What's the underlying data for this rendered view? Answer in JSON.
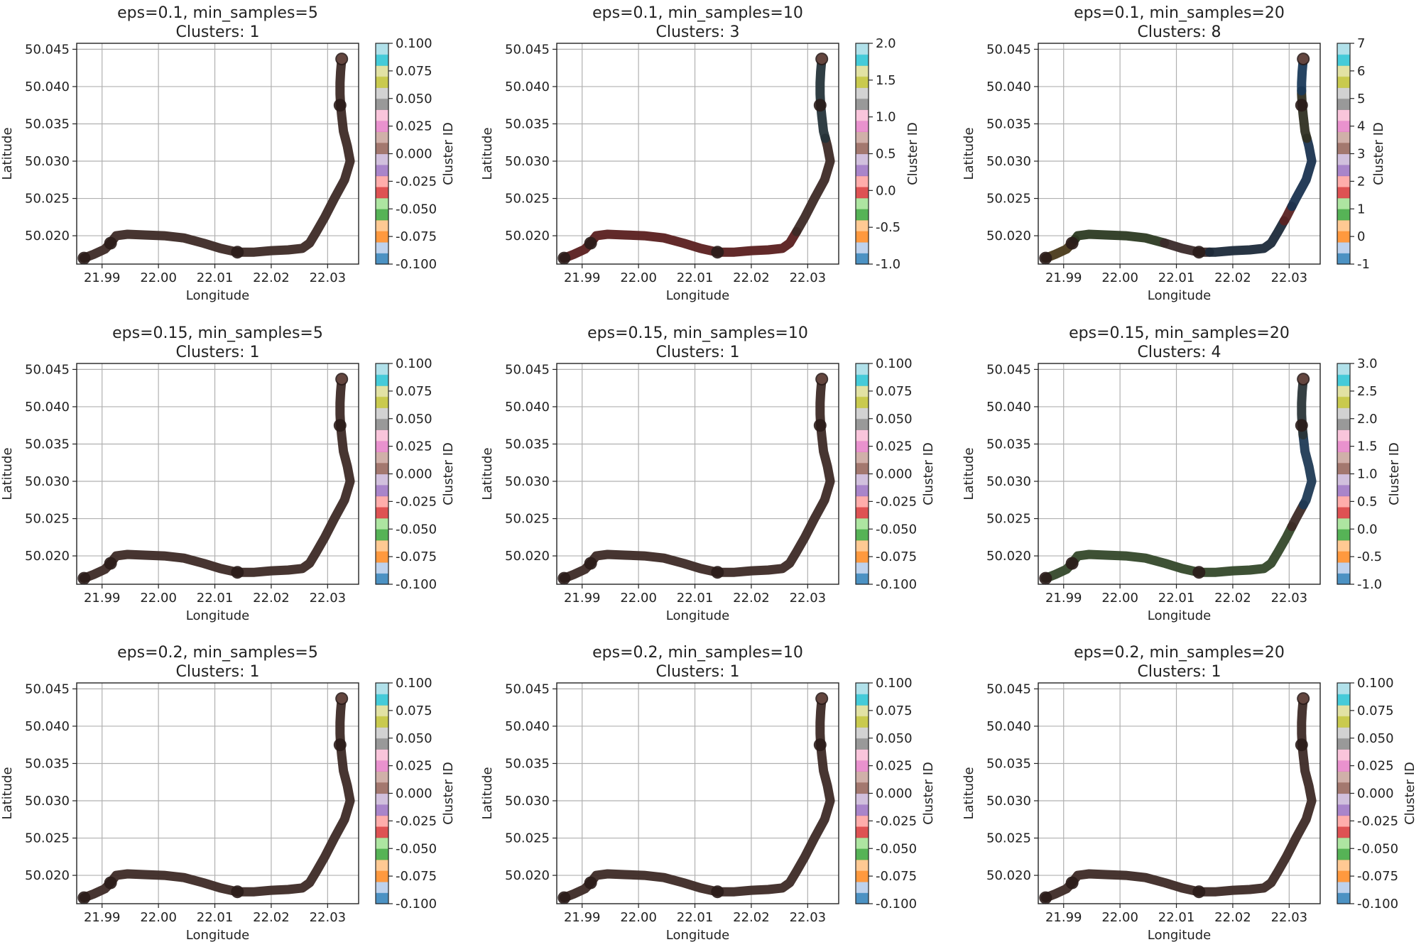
{
  "figure": {
    "axis_labels": {
      "x": "Longitude",
      "y": "Latitude",
      "colorbar": "Cluster ID"
    },
    "tab20_colors": [
      "#1f77b4",
      "#aec7e8",
      "#ff7f0e",
      "#ffbb78",
      "#2ca02c",
      "#98df8a",
      "#d62728",
      "#ff9896",
      "#9467bd",
      "#c5b0d5",
      "#8c564b",
      "#c49c94",
      "#e377c2",
      "#f7b6d2",
      "#7f7f7f",
      "#c7c7c7",
      "#bcbd22",
      "#dbdb8d",
      "#17becf",
      "#9edae5"
    ]
  },
  "chart_data": [
    {
      "type": "scatter",
      "title": "eps=0.1, min_samples=5",
      "subtitle": "Clusters: 1",
      "xlabel": "Longitude",
      "ylabel": "Latitude",
      "xlim": [
        21.9855,
        22.0355
      ],
      "ylim": [
        50.0162,
        50.0458
      ],
      "xticks": [
        "21.99",
        "22.00",
        "22.01",
        "22.02",
        "22.03"
      ],
      "yticks": [
        "50.020",
        "50.025",
        "50.030",
        "50.035",
        "50.040",
        "50.045"
      ],
      "grid": true,
      "colorbar": {
        "label": "Cluster ID",
        "range": [
          -0.1,
          0.1
        ],
        "ticks": [
          "-0.100",
          "-0.075",
          "-0.050",
          "-0.025",
          "0.000",
          "0.025",
          "0.050",
          "0.075",
          "0.100"
        ]
      },
      "segments": [
        {
          "color": "#3d2a26",
          "from": 0,
          "to": 1
        }
      ]
    },
    {
      "type": "scatter",
      "title": "eps=0.1, min_samples=10",
      "subtitle": "Clusters: 3",
      "xlabel": "Longitude",
      "ylabel": "Latitude",
      "xlim": [
        21.9855,
        22.0355
      ],
      "ylim": [
        50.0162,
        50.0458
      ],
      "xticks": [
        "21.99",
        "22.00",
        "22.01",
        "22.02",
        "22.03"
      ],
      "yticks": [
        "50.020",
        "50.025",
        "50.030",
        "50.035",
        "50.040",
        "50.045"
      ],
      "grid": true,
      "colorbar": {
        "label": "Cluster ID",
        "range": [
          -1,
          2
        ],
        "ticks": [
          "-1.0",
          "-0.5",
          "0.0",
          "0.5",
          "1.0",
          "1.5",
          "2.0"
        ]
      },
      "segments": [
        {
          "color": "#5a1f1f",
          "from": 0,
          "to": 0.55
        },
        {
          "color": "#3d2a26",
          "from": 0.55,
          "to": 0.8
        },
        {
          "color": "#25343a",
          "from": 0.8,
          "to": 1
        }
      ]
    },
    {
      "type": "scatter",
      "title": "eps=0.1, min_samples=20",
      "subtitle": "Clusters: 8",
      "xlabel": "Longitude",
      "ylabel": "Latitude",
      "xlim": [
        21.9855,
        22.0355
      ],
      "ylim": [
        50.0162,
        50.0458
      ],
      "xticks": [
        "21.99",
        "22.00",
        "22.01",
        "22.02",
        "22.03"
      ],
      "yticks": [
        "50.020",
        "50.025",
        "50.030",
        "50.035",
        "50.040",
        "50.045"
      ],
      "grid": true,
      "colorbar": {
        "label": "Cluster ID",
        "range": [
          -1,
          7
        ],
        "ticks": [
          "-1",
          "0",
          "1",
          "2",
          "3",
          "4",
          "5",
          "6",
          "7"
        ]
      },
      "segments": [
        {
          "color": "#4a3a1a",
          "from": 0,
          "to": 0.08
        },
        {
          "color": "#2c3a22",
          "from": 0.08,
          "to": 0.28
        },
        {
          "color": "#3a2a2a",
          "from": 0.28,
          "to": 0.38
        },
        {
          "color": "#1c2a3a",
          "from": 0.38,
          "to": 0.58
        },
        {
          "color": "#5a2222",
          "from": 0.58,
          "to": 0.62
        },
        {
          "color": "#1a3350",
          "from": 0.62,
          "to": 0.8
        },
        {
          "color": "#2f2f22",
          "from": 0.8,
          "to": 0.92
        },
        {
          "color": "#1a3a5a",
          "from": 0.92,
          "to": 1
        }
      ]
    },
    {
      "type": "scatter",
      "title": "eps=0.15, min_samples=5",
      "subtitle": "Clusters: 1",
      "xlabel": "Longitude",
      "ylabel": "Latitude",
      "xlim": [
        21.9855,
        22.0355
      ],
      "ylim": [
        50.0162,
        50.0458
      ],
      "xticks": [
        "21.99",
        "22.00",
        "22.01",
        "22.02",
        "22.03"
      ],
      "yticks": [
        "50.020",
        "50.025",
        "50.030",
        "50.035",
        "50.040",
        "50.045"
      ],
      "grid": true,
      "colorbar": {
        "label": "Cluster ID",
        "range": [
          -0.1,
          0.1
        ],
        "ticks": [
          "-0.100",
          "-0.075",
          "-0.050",
          "-0.025",
          "0.000",
          "0.025",
          "0.050",
          "0.075",
          "0.100"
        ]
      },
      "segments": [
        {
          "color": "#3d2a26",
          "from": 0,
          "to": 1
        }
      ]
    },
    {
      "type": "scatter",
      "title": "eps=0.15, min_samples=10",
      "subtitle": "Clusters: 1",
      "xlabel": "Longitude",
      "ylabel": "Latitude",
      "xlim": [
        21.9855,
        22.0355
      ],
      "ylim": [
        50.0162,
        50.0458
      ],
      "xticks": [
        "21.99",
        "22.00",
        "22.01",
        "22.02",
        "22.03"
      ],
      "yticks": [
        "50.020",
        "50.025",
        "50.030",
        "50.035",
        "50.040",
        "50.045"
      ],
      "grid": true,
      "colorbar": {
        "label": "Cluster ID",
        "range": [
          -0.1,
          0.1
        ],
        "ticks": [
          "-0.100",
          "-0.075",
          "-0.050",
          "-0.025",
          "0.000",
          "0.025",
          "0.050",
          "0.075",
          "0.100"
        ]
      },
      "segments": [
        {
          "color": "#3d2a26",
          "from": 0,
          "to": 1
        }
      ]
    },
    {
      "type": "scatter",
      "title": "eps=0.15, min_samples=20",
      "subtitle": "Clusters: 4",
      "xlabel": "Longitude",
      "ylabel": "Latitude",
      "xlim": [
        21.9855,
        22.0355
      ],
      "ylim": [
        50.0162,
        50.0458
      ],
      "xticks": [
        "21.99",
        "22.00",
        "22.01",
        "22.02",
        "22.03"
      ],
      "yticks": [
        "50.020",
        "50.025",
        "50.030",
        "50.035",
        "50.040",
        "50.045"
      ],
      "grid": true,
      "colorbar": {
        "label": "Cluster ID",
        "range": [
          -1,
          3
        ],
        "ticks": [
          "-1.0",
          "-0.5",
          "0.0",
          "0.5",
          "1.0",
          "1.5",
          "2.0",
          "2.5",
          "3.0"
        ]
      },
      "segments": [
        {
          "color": "#34482a",
          "from": 0,
          "to": 0.62
        },
        {
          "color": "#3d2a26",
          "from": 0.62,
          "to": 0.68
        },
        {
          "color": "#1f3a55",
          "from": 0.68,
          "to": 0.86
        },
        {
          "color": "#2a3538",
          "from": 0.86,
          "to": 1
        }
      ]
    },
    {
      "type": "scatter",
      "title": "eps=0.2, min_samples=5",
      "subtitle": "Clusters: 1",
      "xlabel": "Longitude",
      "ylabel": "Latitude",
      "xlim": [
        21.9855,
        22.0355
      ],
      "ylim": [
        50.0162,
        50.0458
      ],
      "xticks": [
        "21.99",
        "22.00",
        "22.01",
        "22.02",
        "22.03"
      ],
      "yticks": [
        "50.020",
        "50.025",
        "50.030",
        "50.035",
        "50.040",
        "50.045"
      ],
      "grid": true,
      "colorbar": {
        "label": "Cluster ID",
        "range": [
          -0.1,
          0.1
        ],
        "ticks": [
          "-0.100",
          "-0.075",
          "-0.050",
          "-0.025",
          "0.000",
          "0.025",
          "0.050",
          "0.075",
          "0.100"
        ]
      },
      "segments": [
        {
          "color": "#3d2a26",
          "from": 0,
          "to": 1
        }
      ]
    },
    {
      "type": "scatter",
      "title": "eps=0.2, min_samples=10",
      "subtitle": "Clusters: 1",
      "xlabel": "Longitude",
      "ylabel": "Latitude",
      "xlim": [
        21.9855,
        22.0355
      ],
      "ylim": [
        50.0162,
        50.0458
      ],
      "xticks": [
        "21.99",
        "22.00",
        "22.01",
        "22.02",
        "22.03"
      ],
      "yticks": [
        "50.020",
        "50.025",
        "50.030",
        "50.035",
        "50.040",
        "50.045"
      ],
      "grid": true,
      "colorbar": {
        "label": "Cluster ID",
        "range": [
          -0.1,
          0.1
        ],
        "ticks": [
          "-0.100",
          "-0.075",
          "-0.050",
          "-0.025",
          "0.000",
          "0.025",
          "0.050",
          "0.075",
          "0.100"
        ]
      },
      "segments": [
        {
          "color": "#3d2a26",
          "from": 0,
          "to": 1
        }
      ]
    },
    {
      "type": "scatter",
      "title": "eps=0.2, min_samples=20",
      "subtitle": "Clusters: 1",
      "xlabel": "Longitude",
      "ylabel": "Latitude",
      "xlim": [
        21.9855,
        22.0355
      ],
      "ylim": [
        50.0162,
        50.0458
      ],
      "xticks": [
        "21.99",
        "22.00",
        "22.01",
        "22.02",
        "22.03"
      ],
      "yticks": [
        "50.020",
        "50.025",
        "50.030",
        "50.035",
        "50.040",
        "50.045"
      ],
      "grid": true,
      "colorbar": {
        "label": "Cluster ID",
        "range": [
          -0.1,
          0.1
        ],
        "ticks": [
          "-0.100",
          "-0.075",
          "-0.050",
          "-0.025",
          "0.000",
          "0.025",
          "0.050",
          "0.075",
          "0.100"
        ]
      },
      "segments": [
        {
          "color": "#3d2a26",
          "from": 0,
          "to": 1
        }
      ]
    }
  ],
  "track": {
    "lon": [
      21.9868,
      21.9885,
      21.9905,
      21.9915,
      21.9925,
      21.9945,
      21.9975,
      22.001,
      22.0045,
      22.008,
      22.011,
      22.014,
      22.017,
      22.02,
      22.023,
      22.0255,
      22.0268,
      22.028,
      22.0295,
      22.0312,
      22.033,
      22.034,
      22.0335,
      22.0328,
      22.0325,
      22.0323,
      22.0322,
      22.0322,
      22.0323,
      22.0325
    ],
    "lat": [
      50.017,
      50.0175,
      50.0182,
      50.019,
      50.02,
      50.0202,
      50.0201,
      50.02,
      50.0197,
      50.019,
      50.0183,
      50.0178,
      50.0178,
      50.018,
      50.0181,
      50.0183,
      50.019,
      50.0205,
      50.0225,
      50.025,
      50.0275,
      50.03,
      50.032,
      50.034,
      50.036,
      50.0375,
      50.039,
      50.0405,
      50.042,
      50.0437
    ],
    "stops": [
      {
        "lon": 21.9868,
        "lat": 50.017
      },
      {
        "lon": 21.9915,
        "lat": 50.019
      },
      {
        "lon": 22.014,
        "lat": 50.0178
      },
      {
        "lon": 22.0322,
        "lat": 50.0375
      },
      {
        "lon": 22.0325,
        "lat": 50.0437
      }
    ]
  }
}
